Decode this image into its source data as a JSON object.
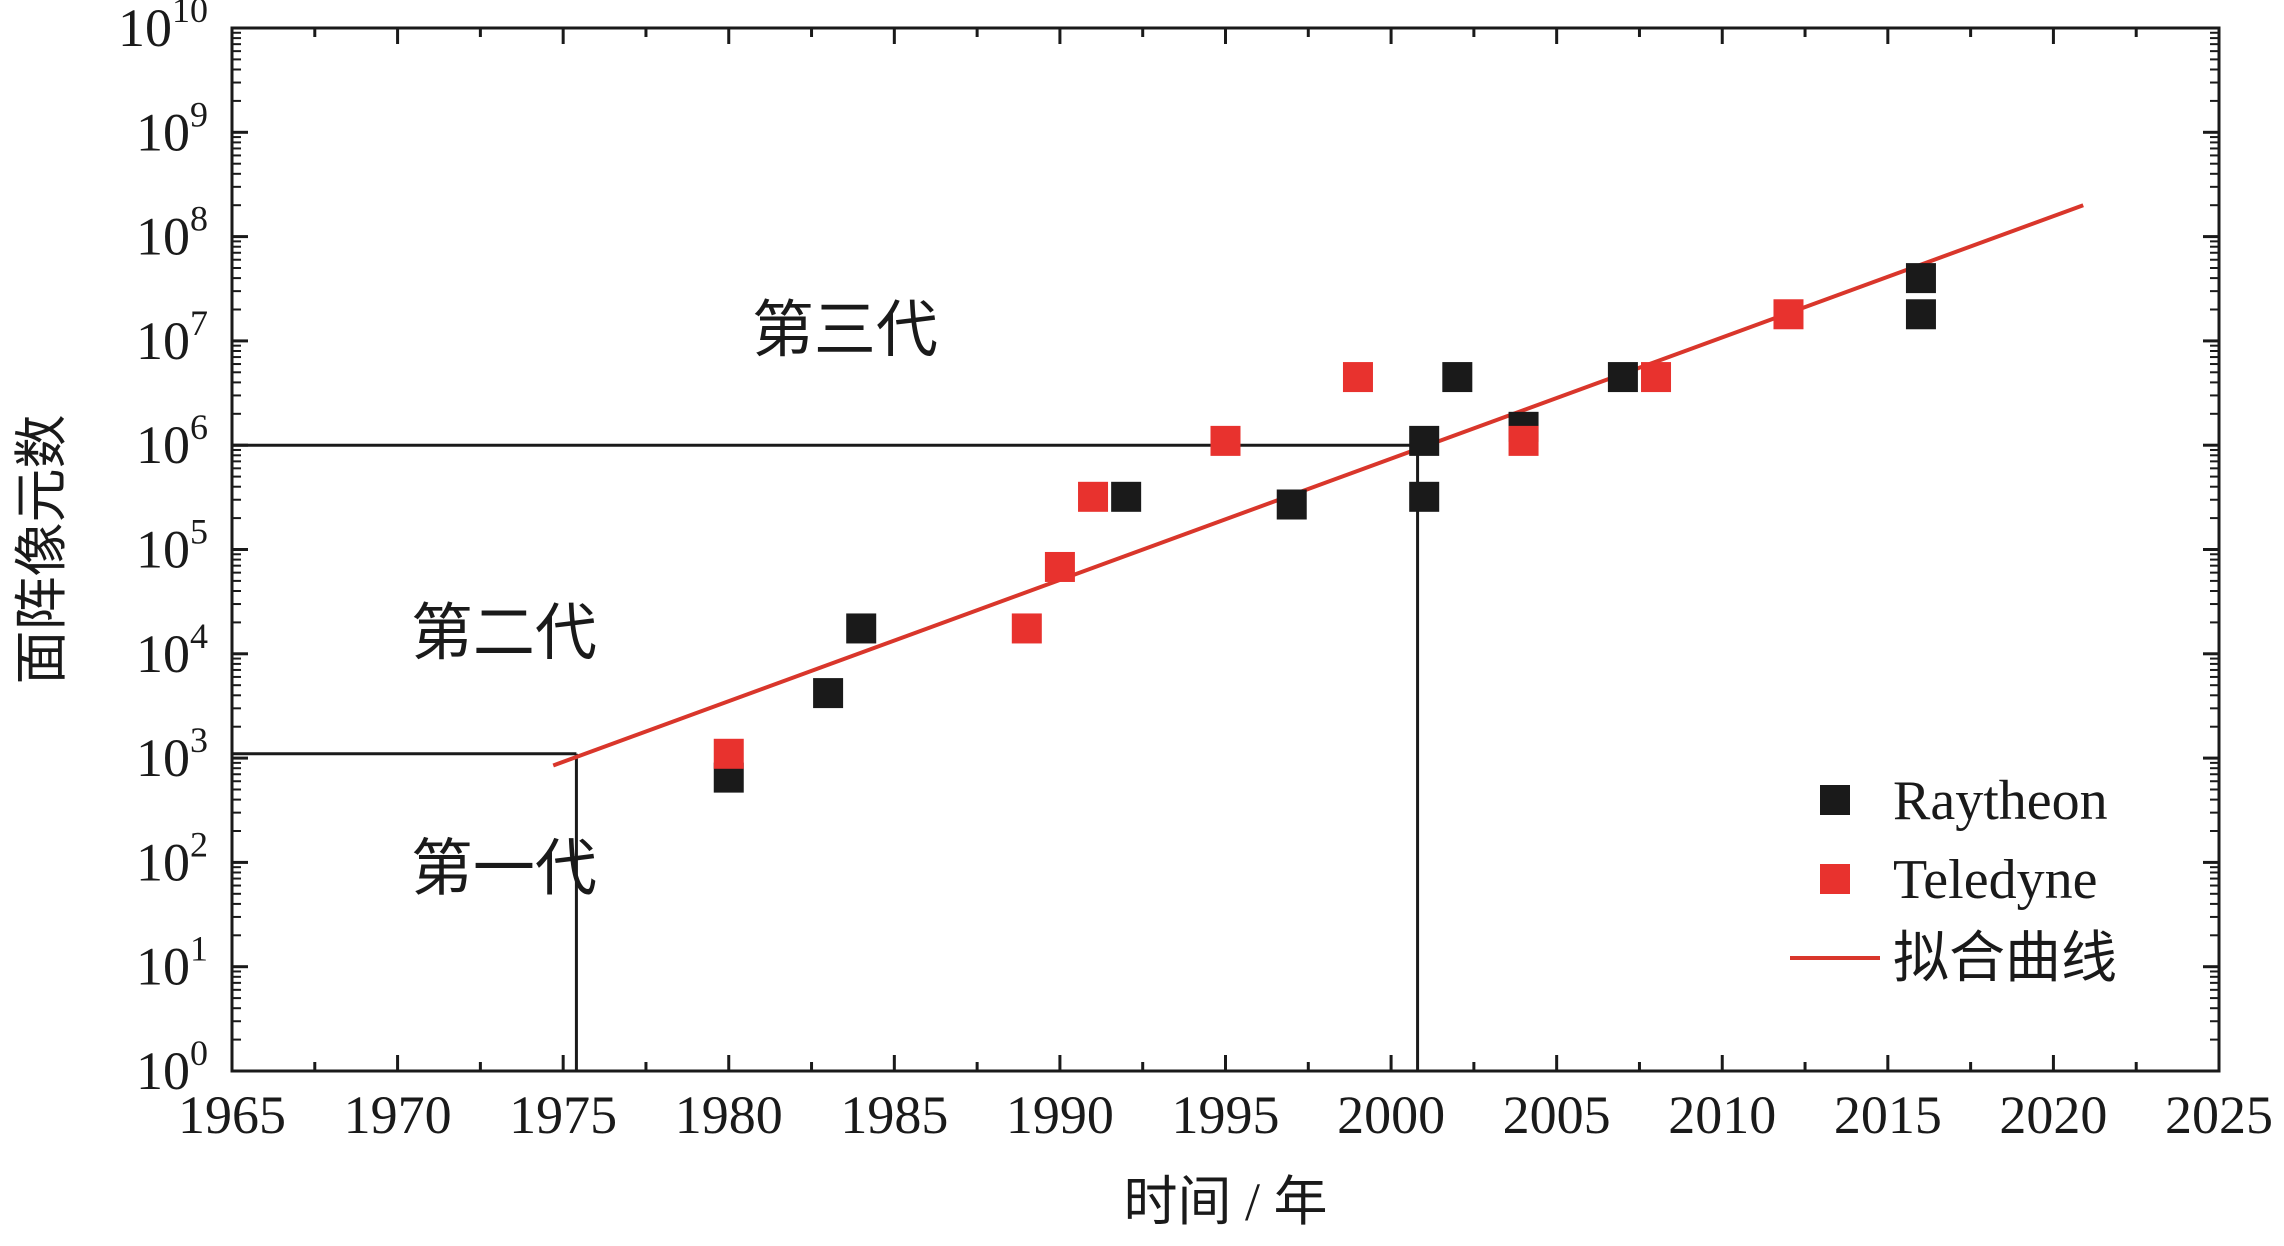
{
  "chart_data": {
    "type": "scatter",
    "xlabel": "时间 / 年",
    "ylabel": "面阵像元数",
    "xlim": [
      1965,
      2025
    ],
    "ylim_log10": [
      0,
      10
    ],
    "yscale": "log",
    "x_ticks": [
      1965,
      1970,
      1975,
      1980,
      1985,
      1990,
      1995,
      2000,
      2005,
      2010,
      2015,
      2020,
      2025
    ],
    "x_tick_labels": [
      "1965",
      "1970",
      "1975",
      "1980",
      "1985",
      "1990",
      "1995",
      "2000",
      "2005",
      "2010",
      "2015",
      "2020",
      "2025"
    ],
    "y_ticks": [
      {
        "base": "10",
        "exp": "0",
        "log10": 0
      },
      {
        "base": "10",
        "exp": "1",
        "log10": 1
      },
      {
        "base": "10",
        "exp": "2",
        "log10": 2
      },
      {
        "base": "10",
        "exp": "3",
        "log10": 3
      },
      {
        "base": "10",
        "exp": "4",
        "log10": 4
      },
      {
        "base": "10",
        "exp": "5",
        "log10": 5
      },
      {
        "base": "10",
        "exp": "6",
        "log10": 6
      },
      {
        "base": "10",
        "exp": "7",
        "log10": 7
      },
      {
        "base": "10",
        "exp": "8",
        "log10": 8
      },
      {
        "base": "10",
        "exp": "9",
        "log10": 9
      },
      {
        "base": "10",
        "exp": "10",
        "log10": 10
      }
    ],
    "grid": false,
    "legend_position": "bottom-right",
    "series": [
      {
        "name": "Raytheon",
        "color": "#1a1a1a",
        "points": [
          {
            "x": 1980,
            "y": 650
          },
          {
            "x": 1983,
            "y": 4200
          },
          {
            "x": 1984,
            "y": 17500
          },
          {
            "x": 1992,
            "y": 320000
          },
          {
            "x": 1997,
            "y": 270000
          },
          {
            "x": 2001,
            "y": 1100000
          },
          {
            "x": 2001,
            "y": 320000
          },
          {
            "x": 2002,
            "y": 4500000
          },
          {
            "x": 2004,
            "y": 1500000
          },
          {
            "x": 2007,
            "y": 4500000
          },
          {
            "x": 2016,
            "y": 40000000
          },
          {
            "x": 2016,
            "y": 18000000
          }
        ]
      },
      {
        "name": "Teledyne",
        "color": "#e8322e",
        "points": [
          {
            "x": 1980,
            "y": 1100
          },
          {
            "x": 1989,
            "y": 17500
          },
          {
            "x": 1990,
            "y": 68000
          },
          {
            "x": 1991,
            "y": 320000
          },
          {
            "x": 1995,
            "y": 1100000
          },
          {
            "x": 1999,
            "y": 4500000
          },
          {
            "x": 2004,
            "y": 1100000
          },
          {
            "x": 2008,
            "y": 4500000
          },
          {
            "x": 2012,
            "y": 18000000
          }
        ]
      }
    ],
    "fit_line": {
      "name": "拟合曲线",
      "color": "#d9362b",
      "points": [
        {
          "x": 1974.7,
          "y": 850
        },
        {
          "x": 2020.9,
          "y": 200000000
        }
      ]
    },
    "reference_lines": {
      "hlines": [
        {
          "y": 1100,
          "x_from": 1965,
          "x_to": 1975.4
        },
        {
          "y": 1000000,
          "x_from": 1965,
          "x_to": 2000.8
        }
      ],
      "vlines": [
        {
          "x": 1975.4,
          "y_from": 1,
          "y_to": 1100
        },
        {
          "x": 2000.8,
          "y_from": 1,
          "y_to": 1000000
        }
      ]
    },
    "annotations": [
      {
        "text": "第一代",
        "x": 1970.4,
        "y": 55
      },
      {
        "text": "第二代",
        "x": 1970.4,
        "y": 10000
      },
      {
        "text": "第三代",
        "x": 1980.7,
        "y": 8000000
      }
    ]
  }
}
